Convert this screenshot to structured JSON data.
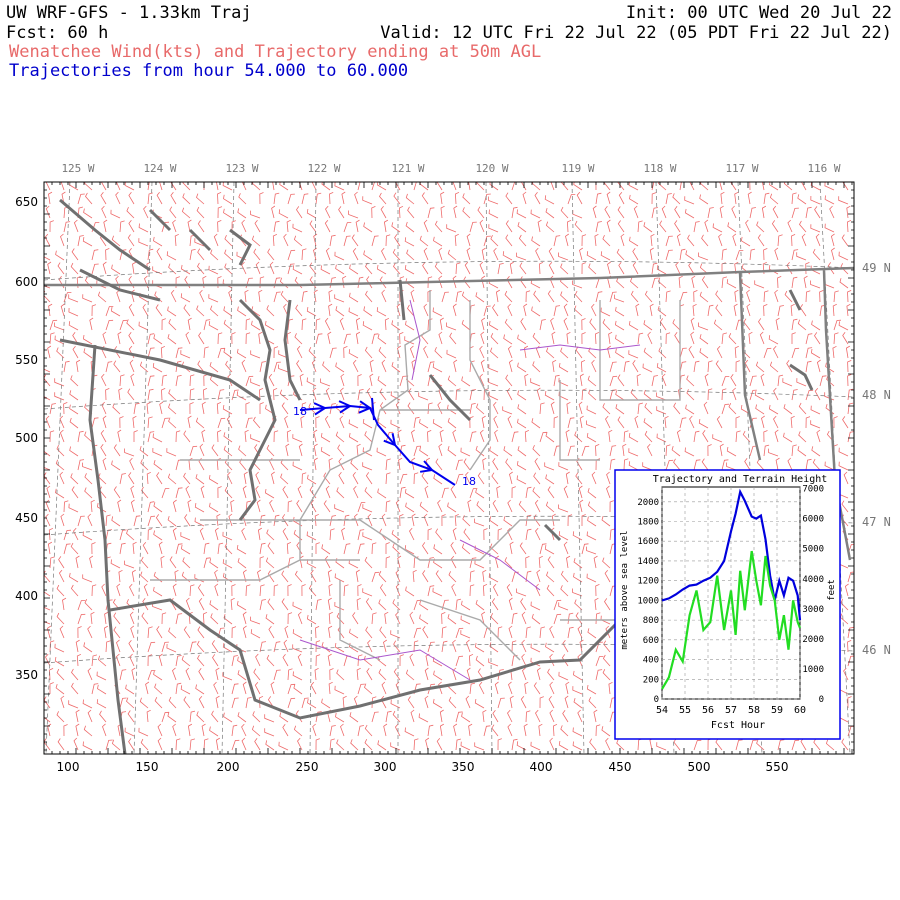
{
  "header": {
    "title": "UW WRF-GFS - 1.33km Traj",
    "init": "Init: 00 UTC Wed 20 Jul 22",
    "fcst": "Fcst:   60 h",
    "valid": "Valid: 12 UTC Fri 22 Jul 22 (05 PDT Fri 22 Jul 22)",
    "subtitle": "Wenatchee Wind(kts) and Trajectory ending at 50m AGL",
    "traj_range": "Trajectories from hour  54.000 to  60.000"
  },
  "map": {
    "lon_labels": [
      "125 W",
      "124 W",
      "123 W",
      "122 W",
      "121 W",
      "120 W",
      "119 W",
      "118 W",
      "117 W",
      "116 W"
    ],
    "lat_labels": [
      "49 N",
      "48 N",
      "47 N",
      "46 N"
    ],
    "x_ticks": [
      "100",
      "150",
      "200",
      "250",
      "300",
      "350",
      "400",
      "450",
      "500",
      "550"
    ],
    "y_ticks": [
      "650",
      "600",
      "550",
      "500",
      "450",
      "400",
      "350"
    ],
    "traj_start_label": "18",
    "traj_end_label": "18",
    "colors": {
      "wind": "#ee6a6a",
      "trajectory": "#0000ee",
      "coast": "#707070",
      "border": "#aaaaaa",
      "river": "#aa44cc"
    }
  },
  "inset": {
    "title": "Trajectory and Terrain Height",
    "ylabel_left": "meters above sea level",
    "ylabel_right": "feet",
    "xlabel": "Fcst Hour",
    "x_ticks": [
      "54",
      "55",
      "56",
      "57",
      "58",
      "59",
      "60"
    ],
    "y_left_ticks": [
      "0",
      "200",
      "400",
      "600",
      "800",
      "1000",
      "1200",
      "1400",
      "1600",
      "1800",
      "2000"
    ],
    "y_right_ticks": [
      "0",
      "1000",
      "2000",
      "3000",
      "4000",
      "5000",
      "6000",
      "7000"
    ]
  },
  "chart_data": {
    "type": "line",
    "title": "Trajectory and Terrain Height",
    "xlabel": "Fcst Hour",
    "ylabel": "meters above sea level",
    "xlim": [
      54,
      60
    ],
    "ylim": [
      0,
      2150
    ],
    "grid": true,
    "series": [
      {
        "color": "#0000dd",
        "x": [
          54,
          54.3,
          54.6,
          54.9,
          55.2,
          55.5,
          55.8,
          56.1,
          56.4,
          56.7,
          57.0,
          57.2,
          57.4,
          57.6,
          57.9,
          58.1,
          58.3,
          58.5,
          58.7,
          58.9,
          59.1,
          59.3,
          59.5,
          59.7,
          59.9,
          60
        ],
        "y": [
          1000,
          1020,
          1060,
          1110,
          1150,
          1160,
          1200,
          1230,
          1290,
          1400,
          1700,
          1880,
          2100,
          2010,
          1850,
          1830,
          1860,
          1620,
          1250,
          1000,
          1200,
          1050,
          1230,
          1200,
          1050,
          800
        ]
      },
      {
        "color": "#22dd22",
        "x": [
          54,
          54.3,
          54.6,
          54.9,
          55.2,
          55.5,
          55.8,
          56.1,
          56.4,
          56.7,
          57.0,
          57.2,
          57.4,
          57.6,
          57.9,
          58.1,
          58.3,
          58.5,
          58.7,
          58.9,
          59.1,
          59.3,
          59.5,
          59.7,
          59.9,
          60
        ],
        "y": [
          100,
          220,
          500,
          380,
          850,
          1100,
          700,
          780,
          1250,
          700,
          1100,
          650,
          1300,
          900,
          1500,
          1200,
          950,
          1450,
          1150,
          1000,
          600,
          850,
          500,
          1000,
          780,
          720
        ]
      }
    ]
  }
}
